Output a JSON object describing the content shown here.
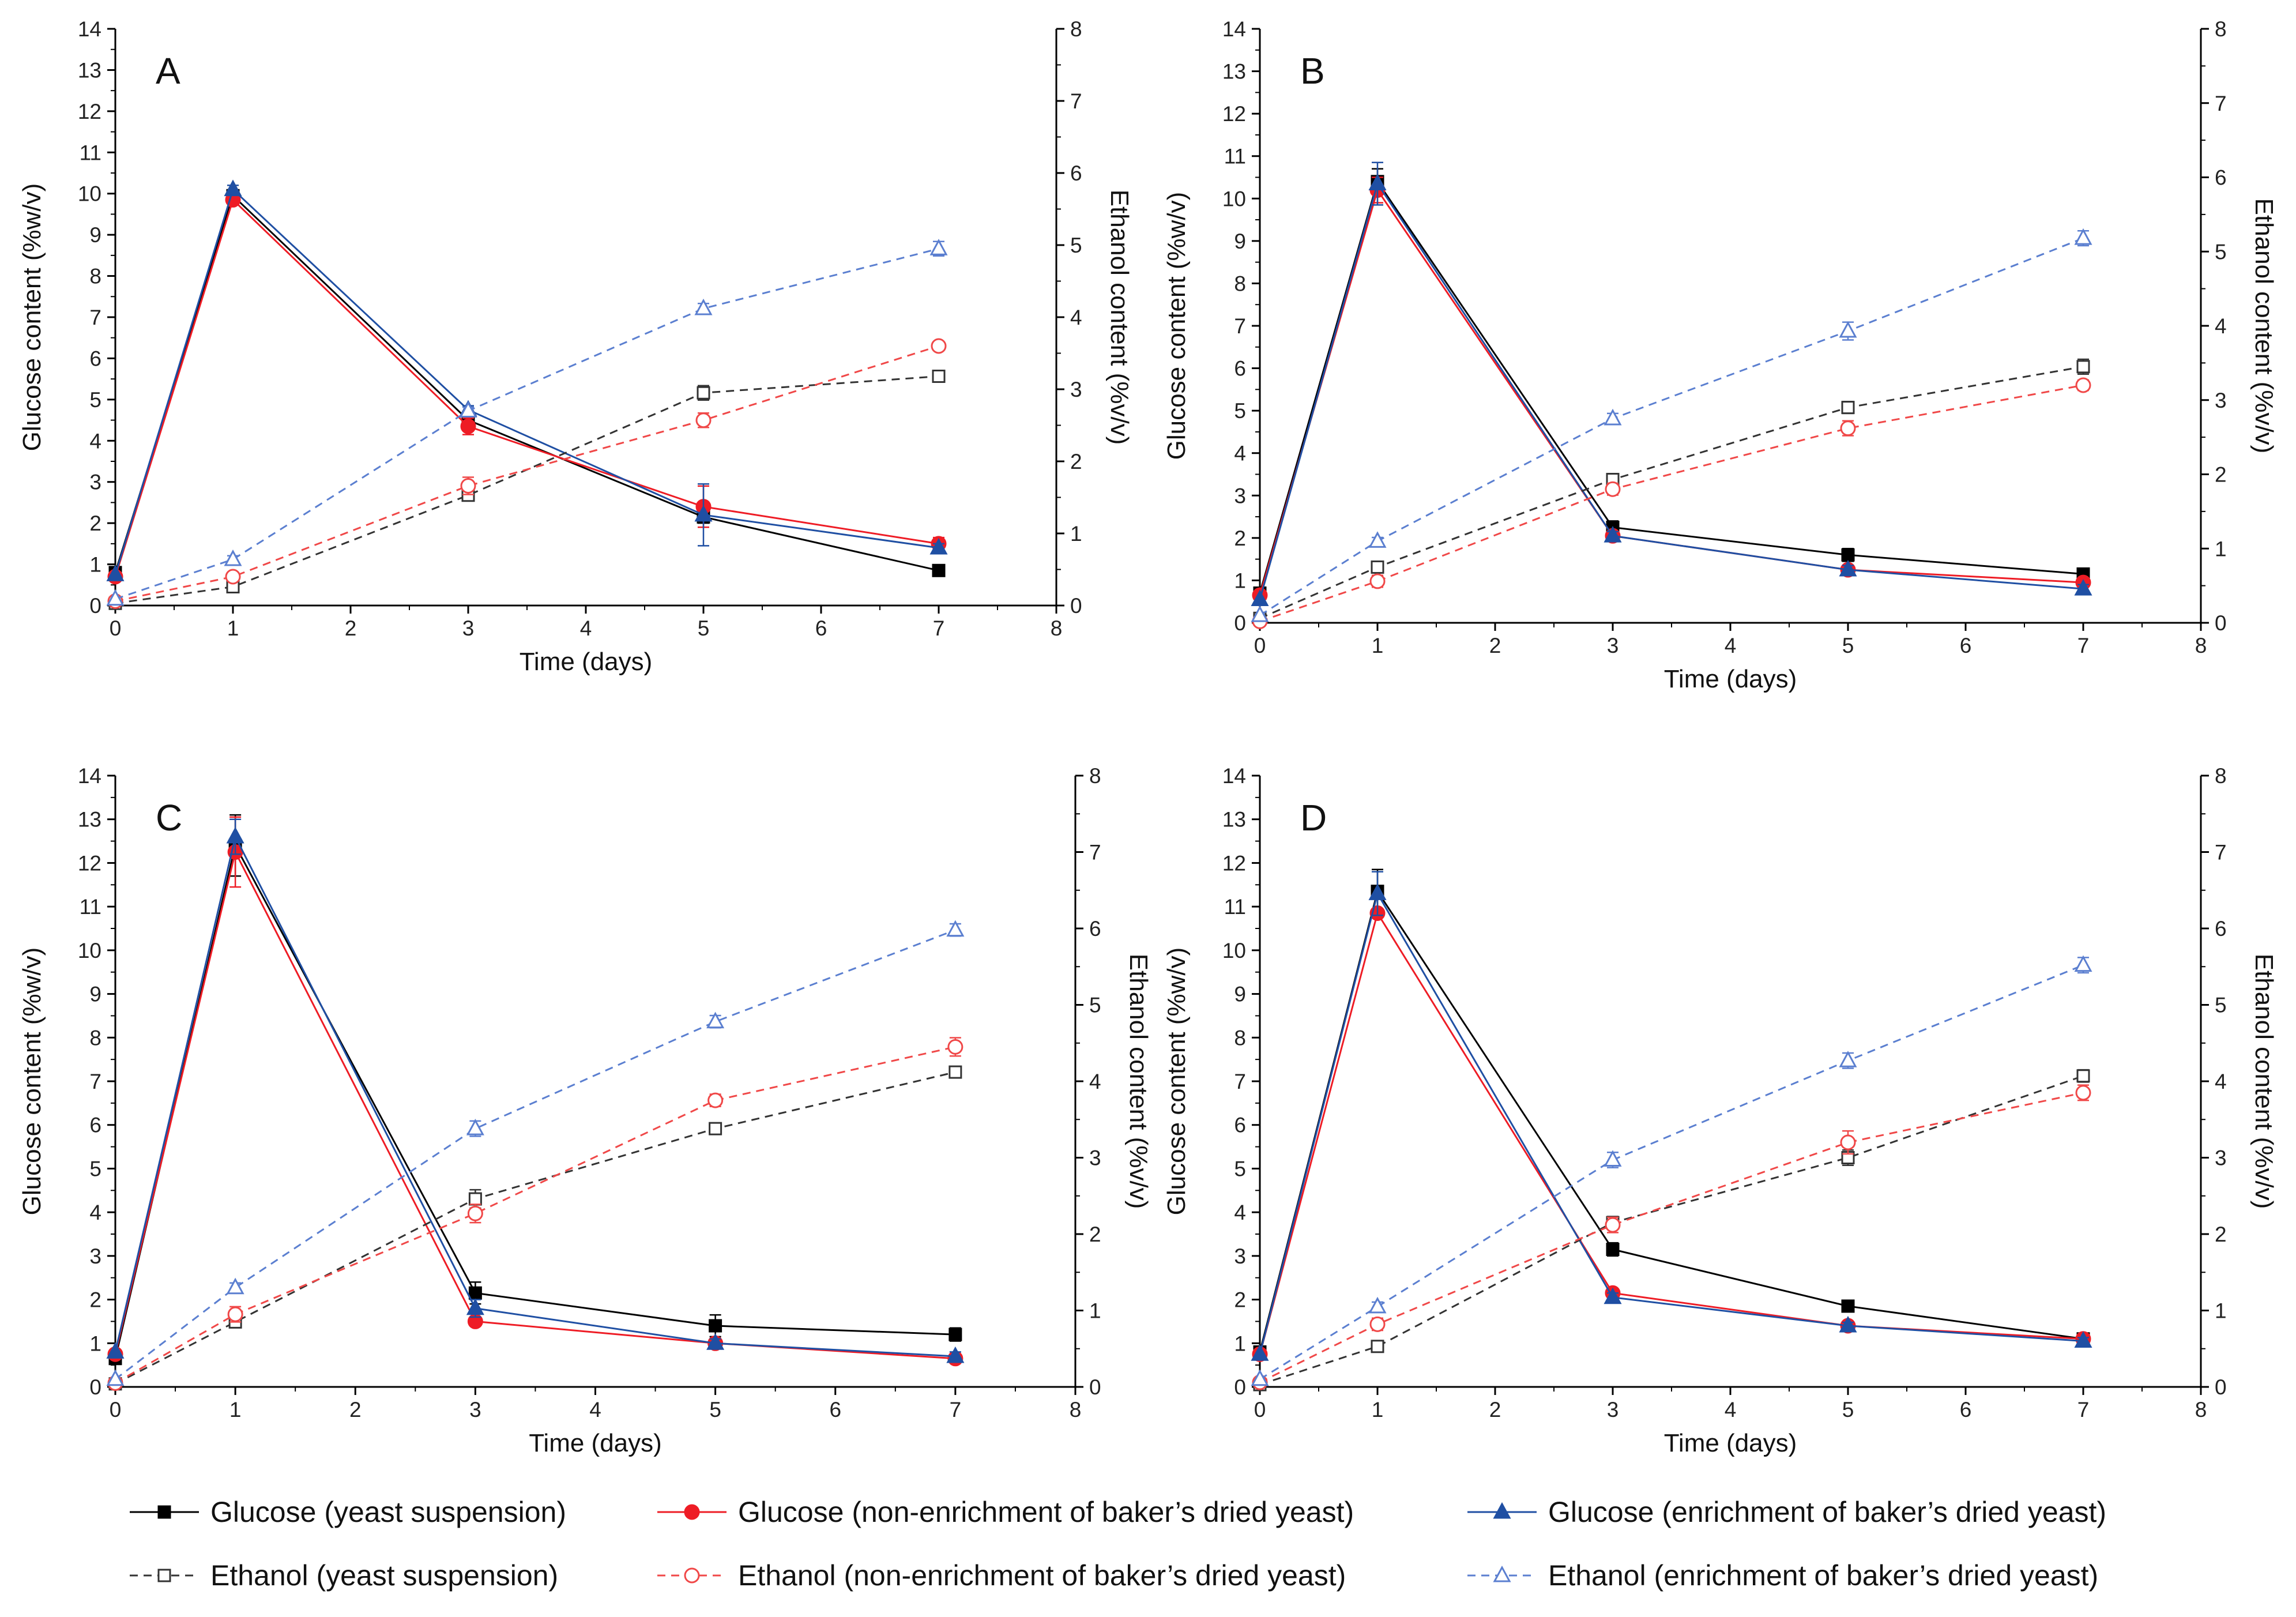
{
  "figure": {
    "background": "#ffffff"
  },
  "legend": [
    {
      "key": "glucose_ys",
      "label": "Glucose (yeast suspension)"
    },
    {
      "key": "glucose_ne",
      "label": "Glucose (non-enrichment of baker’s dried yeast)"
    },
    {
      "key": "glucose_en",
      "label": "Glucose (enrichment of baker’s dried yeast)"
    },
    {
      "key": "ethanol_ys",
      "label": "Ethanol (yeast suspension)"
    },
    {
      "key": "ethanol_ne",
      "label": "Ethanol (non-enrichment of baker’s dried yeast)"
    },
    {
      "key": "ethanol_en",
      "label": "Ethanol (enrichment of baker’s dried yeast)"
    }
  ],
  "series_styles": {
    "glucose_ys": {
      "color": "#000000",
      "marker": "square",
      "filled": true,
      "dashed": false,
      "axis": "left"
    },
    "glucose_ne": {
      "color": "#ee1c25",
      "marker": "circle",
      "filled": true,
      "dashed": false,
      "axis": "left"
    },
    "glucose_en": {
      "color": "#1f4fa3",
      "marker": "triangle",
      "filled": true,
      "dashed": false,
      "axis": "left"
    },
    "ethanol_ys": {
      "color": "#333333",
      "marker": "square",
      "filled": false,
      "dashed": true,
      "axis": "right"
    },
    "ethanol_ne": {
      "color": "#f04848",
      "marker": "circle",
      "filled": false,
      "dashed": true,
      "axis": "right"
    },
    "ethanol_en": {
      "color": "#5b7fd0",
      "marker": "triangle",
      "filled": false,
      "dashed": true,
      "axis": "right"
    }
  },
  "chart_data": [
    {
      "panel": "A",
      "type": "line",
      "xlabel": "Time (days)",
      "ylabel": "Glucose content (%w/v)",
      "y2label": "Ethanol content (%v/v)",
      "xlim": [
        0,
        8
      ],
      "ylim": [
        0,
        14
      ],
      "y2lim": [
        0,
        8
      ],
      "xticks": [
        0,
        1,
        2,
        3,
        4,
        5,
        6,
        7,
        8
      ],
      "yticks": [
        0,
        1,
        2,
        3,
        4,
        5,
        6,
        7,
        8,
        9,
        10,
        11,
        12,
        13,
        14
      ],
      "y2ticks": [
        0,
        1,
        2,
        3,
        4,
        5,
        6,
        7,
        8
      ],
      "x": [
        0,
        1,
        3,
        5,
        7
      ],
      "series": [
        {
          "key": "glucose_ys",
          "values": [
            0.8,
            9.95,
            4.5,
            2.15,
            0.85
          ],
          "err": [
            0,
            0.1,
            0.15,
            0.15,
            0.05
          ]
        },
        {
          "key": "glucose_ne",
          "values": [
            0.7,
            9.85,
            4.35,
            2.4,
            1.5
          ],
          "err": [
            0,
            0.1,
            0.2,
            0.5,
            0.15
          ]
        },
        {
          "key": "glucose_en",
          "values": [
            0.75,
            10.1,
            4.75,
            2.2,
            1.4
          ],
          "err": [
            0,
            0.1,
            0.1,
            0.75,
            0.1
          ]
        },
        {
          "key": "ethanol_ys",
          "values": [
            0.03,
            0.26,
            1.53,
            2.95,
            3.18
          ],
          "err": [
            0,
            0.02,
            0.05,
            0.1,
            0.03
          ]
        },
        {
          "key": "ethanol_ne",
          "values": [
            0.06,
            0.4,
            1.66,
            2.57,
            3.6
          ],
          "err": [
            0,
            0.03,
            0.12,
            0.1,
            0.04
          ]
        },
        {
          "key": "ethanol_en",
          "values": [
            0.09,
            0.64,
            2.7,
            4.12,
            4.95
          ],
          "err": [
            0,
            0.05,
            0.05,
            0.07,
            0.1
          ]
        }
      ]
    },
    {
      "panel": "B",
      "type": "line",
      "xlabel": "Time (days)",
      "ylabel": "Glucose content (%w/v)",
      "y2label": "Ethanol content (%v/v)",
      "xlim": [
        0,
        8
      ],
      "ylim": [
        0,
        14
      ],
      "y2lim": [
        0,
        8
      ],
      "xticks": [
        0,
        1,
        2,
        3,
        4,
        5,
        6,
        7,
        8
      ],
      "yticks": [
        0,
        1,
        2,
        3,
        4,
        5,
        6,
        7,
        8,
        9,
        10,
        11,
        12,
        13,
        14
      ],
      "y2ticks": [
        0,
        1,
        2,
        3,
        4,
        5,
        6,
        7,
        8
      ],
      "x": [
        0,
        1,
        3,
        5,
        7
      ],
      "series": [
        {
          "key": "glucose_ys",
          "values": [
            0.7,
            10.4,
            2.25,
            1.6,
            1.15
          ],
          "err": [
            0,
            0.3,
            0.15,
            0.15,
            0.1
          ]
        },
        {
          "key": "glucose_ne",
          "values": [
            0.65,
            10.2,
            2.05,
            1.25,
            0.95
          ],
          "err": [
            0,
            0.3,
            0.1,
            0.1,
            0.1
          ]
        },
        {
          "key": "glucose_en",
          "values": [
            0.55,
            10.35,
            2.05,
            1.25,
            0.8
          ],
          "err": [
            0,
            0.5,
            0.1,
            0.1,
            0.1
          ]
        },
        {
          "key": "ethanol_ys",
          "values": [
            0.06,
            0.75,
            1.93,
            2.9,
            3.45
          ],
          "err": [
            0,
            0.07,
            0.08,
            0.08,
            0.1
          ]
        },
        {
          "key": "ethanol_ne",
          "values": [
            0.02,
            0.56,
            1.8,
            2.62,
            3.2
          ],
          "err": [
            0,
            0.08,
            0.08,
            0.1,
            0.07
          ]
        },
        {
          "key": "ethanol_en",
          "values": [
            0.1,
            1.1,
            2.75,
            3.93,
            5.18
          ],
          "err": [
            0,
            0.05,
            0.07,
            0.12,
            0.1
          ]
        }
      ]
    },
    {
      "panel": "C",
      "type": "line",
      "xlabel": "Time (days)",
      "ylabel": "Glucose content (%w/v)",
      "y2label": "Ethanol content (%v/v)",
      "xlim": [
        0,
        8
      ],
      "ylim": [
        0,
        14
      ],
      "y2lim": [
        0,
        8
      ],
      "xticks": [
        0,
        1,
        2,
        3,
        4,
        5,
        6,
        7,
        8
      ],
      "yticks": [
        0,
        1,
        2,
        3,
        4,
        5,
        6,
        7,
        8,
        9,
        10,
        11,
        12,
        13,
        14
      ],
      "y2ticks": [
        0,
        1,
        2,
        3,
        4,
        5,
        6,
        7,
        8
      ],
      "x": [
        0,
        1,
        3,
        5,
        7
      ],
      "series": [
        {
          "key": "glucose_ys",
          "values": [
            0.65,
            12.4,
            2.15,
            1.4,
            1.2
          ],
          "err": [
            0,
            0.7,
            0.25,
            0.25,
            0.15
          ]
        },
        {
          "key": "glucose_ne",
          "values": [
            0.75,
            12.25,
            1.5,
            1.0,
            0.65
          ],
          "err": [
            0,
            0.8,
            0.1,
            0.1,
            0.1
          ]
        },
        {
          "key": "glucose_en",
          "values": [
            0.8,
            12.6,
            1.8,
            1.0,
            0.7
          ],
          "err": [
            0,
            0.4,
            0.2,
            0.1,
            0.1
          ]
        },
        {
          "key": "ethanol_ys",
          "values": [
            0.04,
            0.85,
            2.46,
            3.38,
            4.12
          ],
          "err": [
            0,
            0.05,
            0.12,
            0.05,
            0.05
          ]
        },
        {
          "key": "ethanol_ne",
          "values": [
            0.05,
            0.95,
            2.27,
            3.75,
            4.45
          ],
          "err": [
            0,
            0.1,
            0.12,
            0.08,
            0.12
          ]
        },
        {
          "key": "ethanol_en",
          "values": [
            0.1,
            1.3,
            3.38,
            4.78,
            5.98
          ],
          "err": [
            0,
            0.06,
            0.1,
            0.08,
            0.08
          ]
        }
      ]
    },
    {
      "panel": "D",
      "type": "line",
      "xlabel": "Time (days)",
      "ylabel": "Glucose content (%w/v)",
      "y2label": "Ethanol content (%v/v)",
      "xlim": [
        0,
        8
      ],
      "ylim": [
        0,
        14
      ],
      "y2lim": [
        0,
        8
      ],
      "xticks": [
        0,
        1,
        2,
        3,
        4,
        5,
        6,
        7,
        8
      ],
      "yticks": [
        0,
        1,
        2,
        3,
        4,
        5,
        6,
        7,
        8,
        9,
        10,
        11,
        12,
        13,
        14
      ],
      "y2ticks": [
        0,
        1,
        2,
        3,
        4,
        5,
        6,
        7,
        8
      ],
      "x": [
        0,
        1,
        3,
        5,
        7
      ],
      "series": [
        {
          "key": "glucose_ys",
          "values": [
            0.8,
            11.35,
            3.15,
            1.85,
            1.1
          ],
          "err": [
            0,
            0.5,
            0.15,
            0.1,
            0.08
          ]
        },
        {
          "key": "glucose_ne",
          "values": [
            0.75,
            10.85,
            2.15,
            1.4,
            1.1
          ],
          "err": [
            0,
            0.1,
            0.1,
            0.08,
            0.08
          ]
        },
        {
          "key": "glucose_en",
          "values": [
            0.75,
            11.3,
            2.05,
            1.4,
            1.05
          ],
          "err": [
            0,
            0.5,
            0.1,
            0.08,
            0.08
          ]
        },
        {
          "key": "ethanol_ys",
          "values": [
            0.03,
            0.53,
            2.15,
            3.0,
            4.07
          ],
          "err": [
            0,
            0.03,
            0.08,
            0.1,
            0.08
          ]
        },
        {
          "key": "ethanol_ne",
          "values": [
            0.06,
            0.82,
            2.12,
            3.2,
            3.85
          ],
          "err": [
            0,
            0.08,
            0.1,
            0.15,
            0.1
          ]
        },
        {
          "key": "ethanol_en",
          "values": [
            0.1,
            1.05,
            2.97,
            4.27,
            5.52
          ],
          "err": [
            0,
            0.06,
            0.1,
            0.1,
            0.1
          ]
        }
      ]
    }
  ]
}
